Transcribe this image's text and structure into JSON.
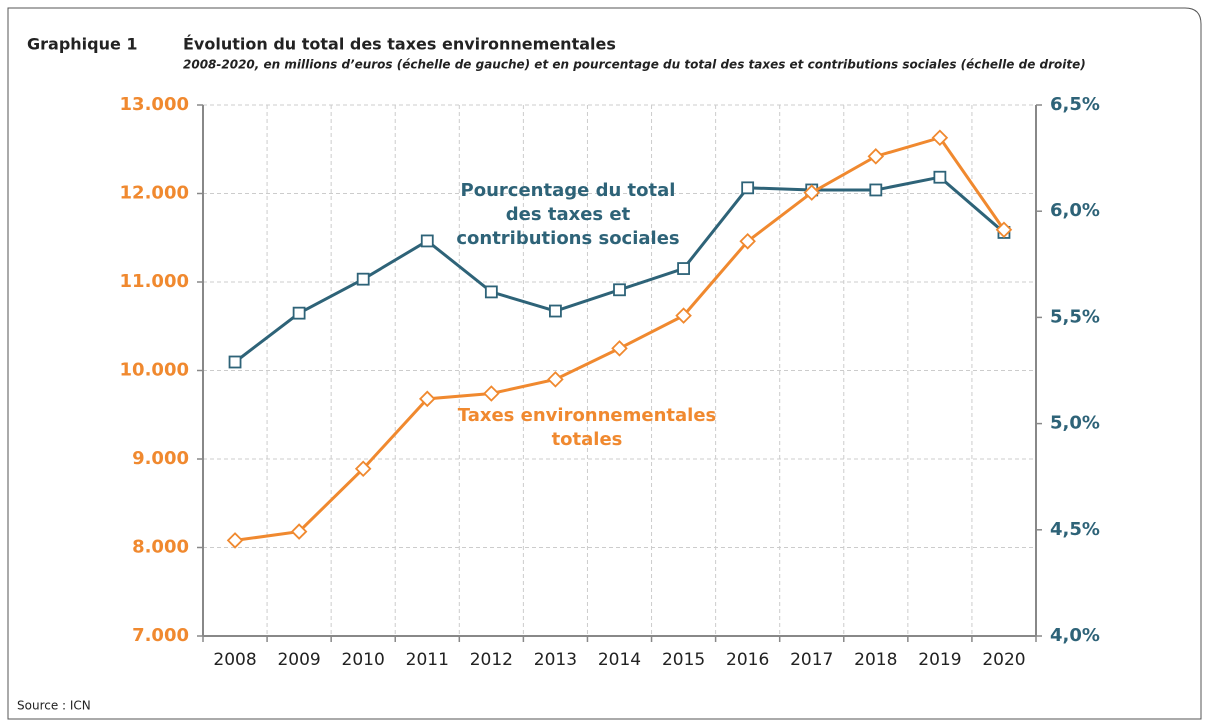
{
  "chart_data": {
    "type": "line",
    "label": "Graphique 1",
    "title": "Évolution du total des taxes environnementales",
    "subtitle": "2008-2020, en millions d’euros (échelle de gauche) et en pourcentage du total des taxes et contributions sociales (échelle de droite)",
    "source": "Source : ICN",
    "categories": [
      "2008",
      "2009",
      "2010",
      "2011",
      "2012",
      "2013",
      "2014",
      "2015",
      "2016",
      "2017",
      "2018",
      "2019",
      "2020"
    ],
    "series": [
      {
        "color": "#2e6378",
        "marker": "square",
        "axis": "y2",
        "values": [
          5.29,
          5.52,
          5.68,
          5.86,
          5.62,
          5.53,
          5.63,
          5.73,
          6.11,
          6.1,
          6.1,
          6.16,
          5.9
        ]
      },
      {
        "color": "#f0892f",
        "marker": "diamond",
        "values": [
          8080,
          8180,
          8890,
          9680,
          9740,
          9900,
          10250,
          10620,
          11460,
          12010,
          12420,
          12630,
          11590
        ]
      }
    ],
    "annotations": [
      {
        "lines": [
          "Pourcentage du total",
          "des taxes et",
          "contributions sociales"
        ],
        "color": "#2e6378"
      },
      {
        "lines": [
          "Taxes environnementales",
          "totales"
        ],
        "color": "#f0892f"
      }
    ],
    "ylim": [
      7000,
      13000
    ],
    "yticks": [
      {
        "value": 7000,
        "label": "7.000"
      },
      {
        "value": 8000,
        "label": "8.000"
      },
      {
        "value": 9000,
        "label": "9.000"
      },
      {
        "value": 10000,
        "label": "10.000"
      },
      {
        "value": 11000,
        "label": "11.000"
      },
      {
        "value": 12000,
        "label": "12.000"
      },
      {
        "value": 13000,
        "label": "13.000"
      }
    ],
    "y2lim": [
      4.0,
      6.5
    ],
    "y2ticks": [
      {
        "value": 4.0,
        "label": "4,0%"
      },
      {
        "value": 4.5,
        "label": "4,5%"
      },
      {
        "value": 5.0,
        "label": "5,0%"
      },
      {
        "value": 5.5,
        "label": "5,5%"
      },
      {
        "value": 6.0,
        "label": "6,0%"
      },
      {
        "value": 6.5,
        "label": "6,5%"
      }
    ],
    "grid": true
  }
}
